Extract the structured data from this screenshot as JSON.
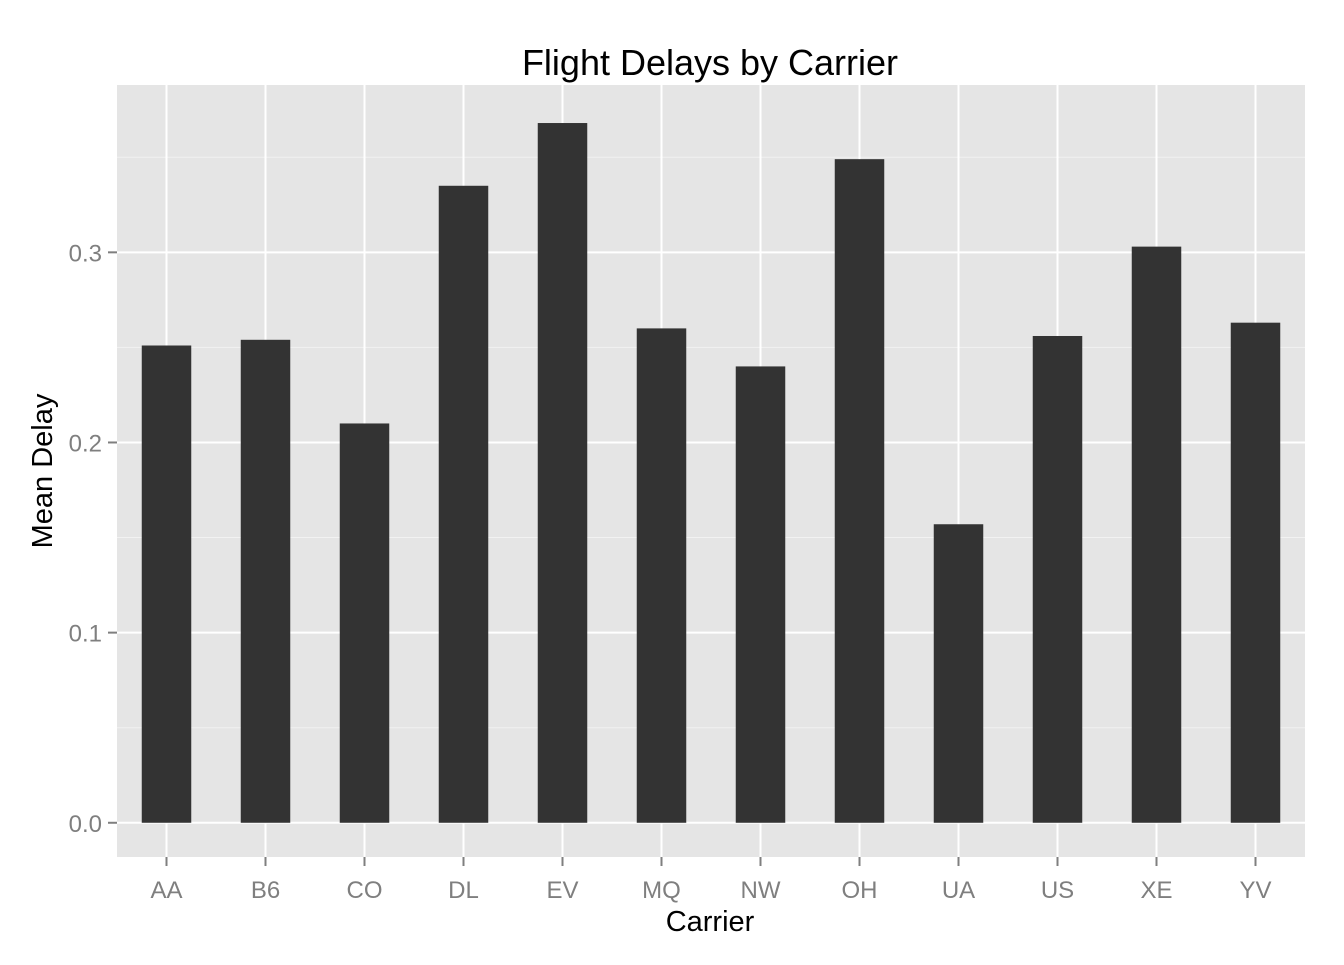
{
  "chart_data": {
    "type": "bar",
    "title": "Flight Delays by Carrier",
    "xlabel": "Carrier",
    "ylabel": "Mean Delay",
    "categories": [
      "AA",
      "B6",
      "CO",
      "DL",
      "EV",
      "MQ",
      "NW",
      "OH",
      "UA",
      "US",
      "XE",
      "YV"
    ],
    "values": [
      0.251,
      0.254,
      0.21,
      0.335,
      0.368,
      0.26,
      0.24,
      0.349,
      0.157,
      0.256,
      0.303,
      0.263
    ],
    "ylim": [
      -0.018,
      0.388
    ],
    "yticks": [
      0.0,
      0.1,
      0.2,
      0.3
    ],
    "ytick_labels": [
      "0.0",
      "0.1",
      "0.2",
      "0.3"
    ],
    "grid": true,
    "legend": "none",
    "colors": {
      "panel_background": "#e5e5e5",
      "grid_major": "#ffffff",
      "grid_minor": "#f2f2f2",
      "bar_fill": "#333333",
      "tick_text": "#7f7f7f",
      "tick_mark": "#7f7f7f"
    }
  }
}
